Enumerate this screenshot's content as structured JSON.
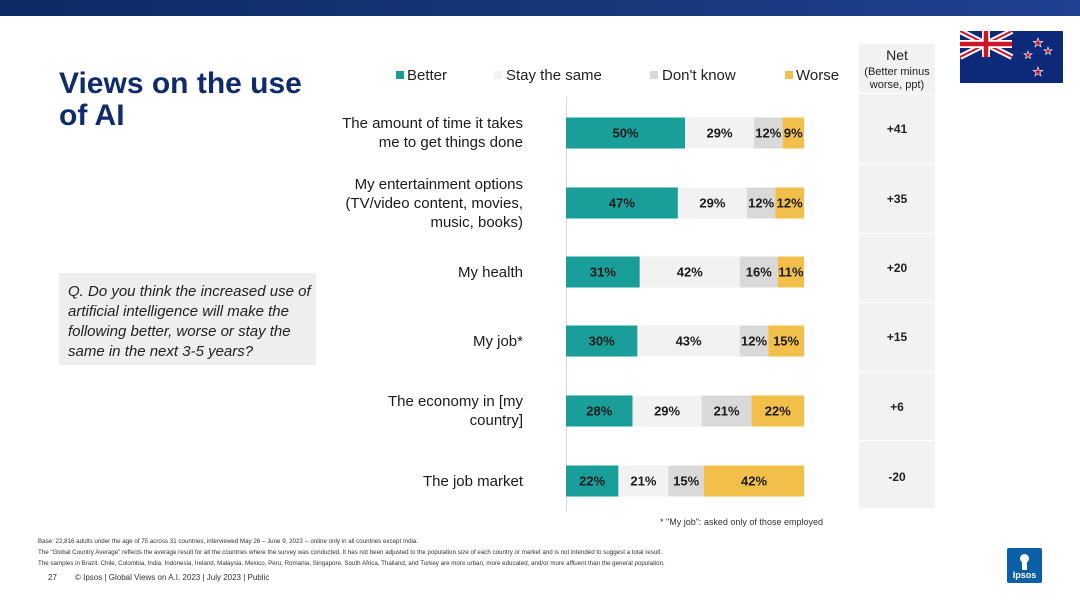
{
  "title": "Views on the use of AI",
  "question": "Q. Do you think the increased use of artificial intelligence will make the following better, worse or stay the same in the next 3-5 years?",
  "net": {
    "title": "Net",
    "subtitle": "(Better minus worse, ppt)"
  },
  "chart_data": {
    "type": "bar",
    "orientation": "horizontal",
    "stacked": true,
    "categories": [
      "The amount of time it takes me to get things done",
      "My entertainment options (TV/video content, movies, music, books)",
      "My health",
      "My job*",
      "The economy in [my country]",
      "The job market"
    ],
    "category_lines": [
      [
        "The amount of time it takes",
        "me to get things done"
      ],
      [
        "My entertainment options",
        "(TV/video content, movies,",
        "music, books)"
      ],
      [
        "My health"
      ],
      [
        "My job*"
      ],
      [
        "The economy in [my",
        "country]"
      ],
      [
        "The job market"
      ]
    ],
    "series": [
      {
        "name": "Better",
        "color": "#1a9e9a",
        "values": [
          50,
          47,
          31,
          30,
          28,
          22
        ]
      },
      {
        "name": "Stay the same",
        "color": "#f2f2f2",
        "values": [
          29,
          29,
          42,
          43,
          29,
          21
        ]
      },
      {
        "name": "Don't know",
        "color": "#d9d9d9",
        "values": [
          12,
          12,
          16,
          12,
          21,
          15
        ]
      },
      {
        "name": "Worse",
        "color": "#f2bf4a",
        "values": [
          9,
          12,
          11,
          15,
          22,
          42
        ]
      }
    ],
    "net": [
      "+41",
      "+35",
      "+20",
      "+15",
      "+6",
      "-20"
    ],
    "value_suffix": "%"
  },
  "footnote_job": "* \"My job\": asked only of those employed",
  "base_lines": [
    "Base: 22,816 adults under the age of 75 across 31 countries, interviewed May 26 – June 9, 2023 -- online only in all countries except India.",
    "The \"Global Country Average\" reflects the average result for all the countries where the survey was conducted. It has not been adjusted to the population size of each country or market and is not intended to suggest a total result.",
    "The samples in Brazil, Chile, Colombia, India, Indonesia, Ireland, Malaysia, Mexico, Peru, Romania, Singapore, South Africa, Thailand, and Turkey are more urban, more educated, and/or more affluent than the general population."
  ],
  "page_number": "27",
  "copyright": "© Ipsos | Global Views on A.I. 2023 | July 2023 | Public",
  "logo_text": "Ipsos"
}
